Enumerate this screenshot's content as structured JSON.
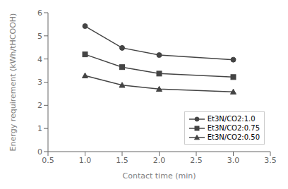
{
  "chart_data": {
    "type": "line",
    "x": [
      1.0,
      1.5,
      2.0,
      3.0
    ],
    "series": [
      {
        "name": "Et3N/CO2:1.0",
        "color": "#444444",
        "marker": "circle",
        "values": [
          5.42,
          4.48,
          4.17,
          3.97
        ]
      },
      {
        "name": "Et3N/CO2:0.75",
        "color": "#444444",
        "marker": "square",
        "values": [
          4.2,
          3.65,
          3.37,
          3.22
        ]
      },
      {
        "name": "Et3N/CO2:0.50",
        "color": "#444444",
        "marker": "triangle",
        "values": [
          3.28,
          2.87,
          2.7,
          2.58
        ]
      }
    ],
    "xlabel": "Contact time (min)",
    "ylabel": "Energy requirement (kWh/tHCOOH)",
    "xlim": [
      0.5,
      3.5
    ],
    "ylim": [
      0,
      6
    ],
    "xticks": [
      0.5,
      {
        "value": 1,
        "label": "1.0"
      },
      1.5,
      {
        "value": 2,
        "label": "2.0"
      },
      2.5,
      {
        "value": 3,
        "label": "3.0"
      },
      3.5
    ],
    "yticks": [
      0,
      1,
      2,
      3,
      4,
      5,
      6
    ],
    "legend": "lower right",
    "grid": false
  }
}
